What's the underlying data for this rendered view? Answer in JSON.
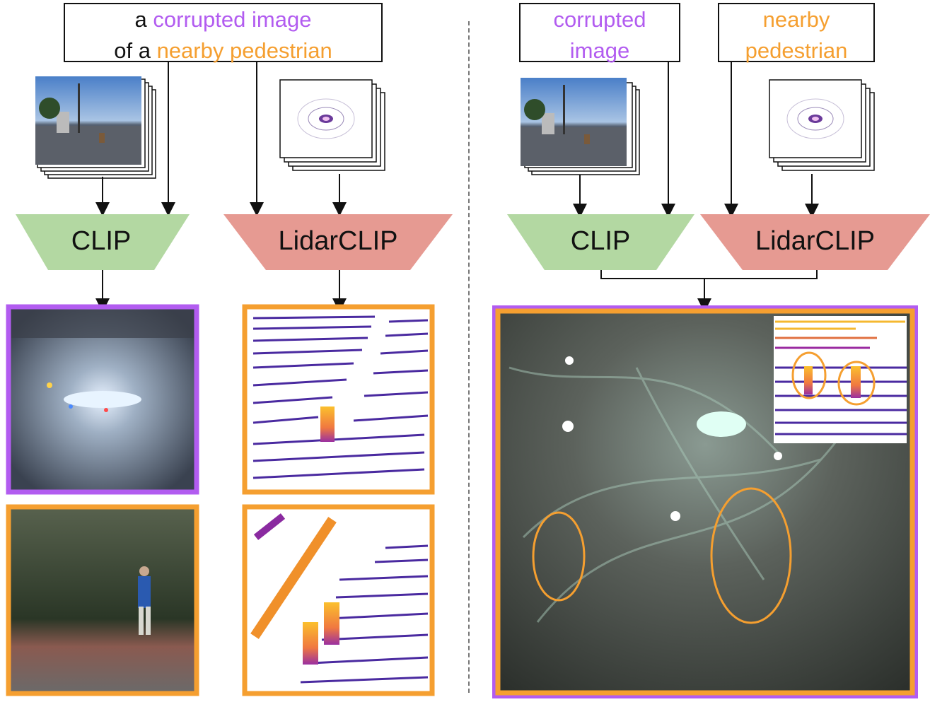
{
  "left": {
    "query": {
      "line1_plain": "a",
      "line1_highlight": "corrupted image",
      "line2_plain": "of a",
      "line2_highlight": "nearby pedestrian"
    },
    "clip_label": "CLIP",
    "lidarclip_label": "LidarCLIP"
  },
  "right": {
    "query_image": [
      "corrupted",
      "image"
    ],
    "query_pedestrian": [
      "nearby",
      "pedestrian"
    ],
    "clip_label": "CLIP",
    "lidarclip_label": "LidarCLIP"
  },
  "colors": {
    "purple": "#b25cf0",
    "orange": "#f59f30",
    "clip_green": "#b3d8a2",
    "lidar_red": "#e69a92"
  },
  "icons": [
    "camera-image-stack-icon",
    "lidar-scan-stack-icon"
  ]
}
